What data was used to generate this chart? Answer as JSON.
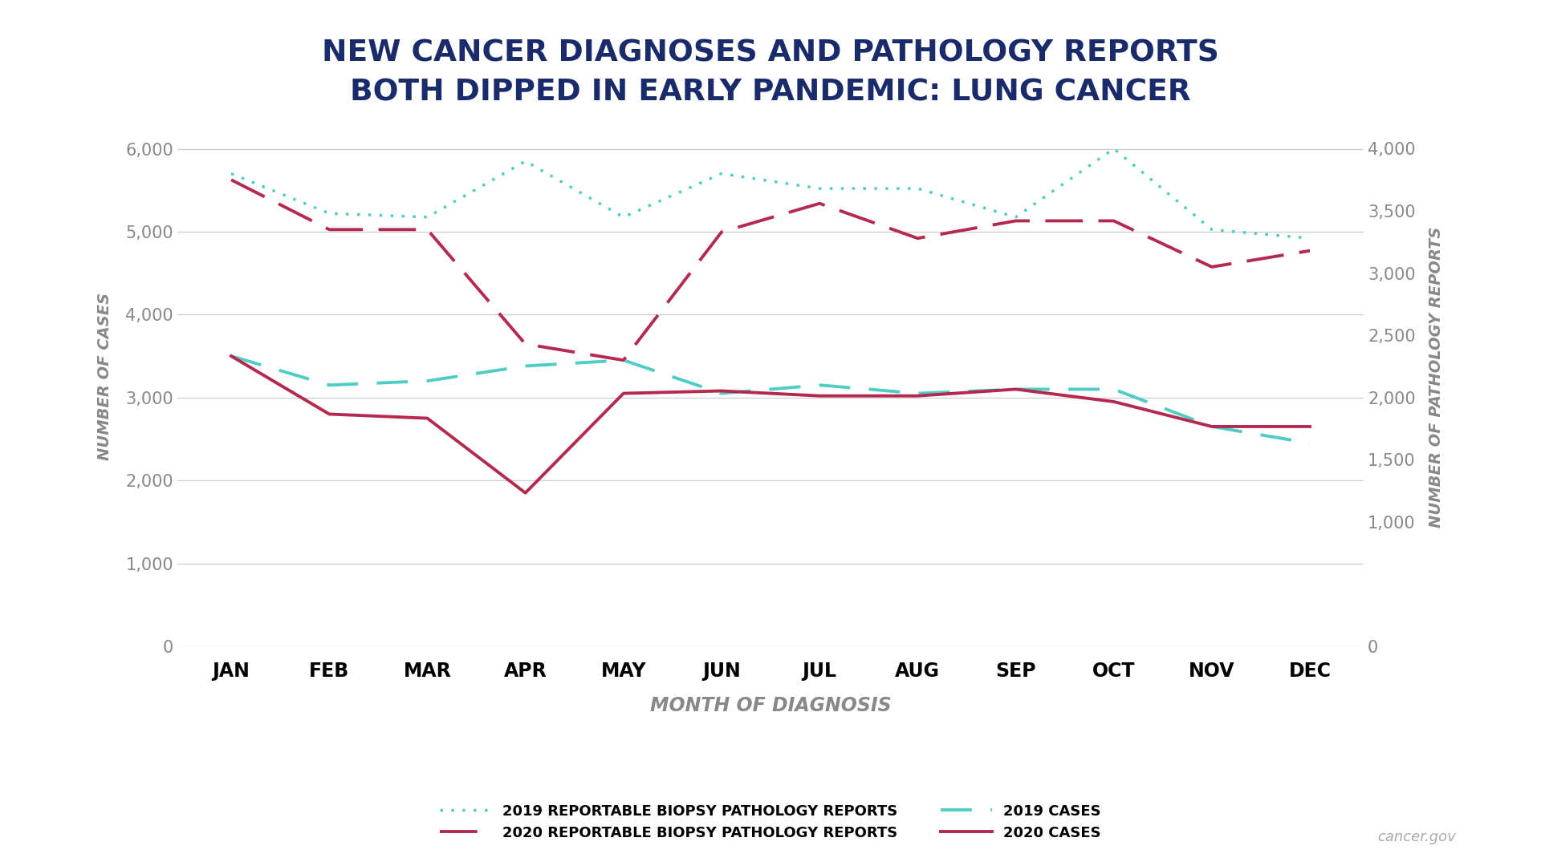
{
  "title_line1": "NEW CANCER DIAGNOSES AND PATHOLOGY REPORTS",
  "title_line2": "BOTH DIPPED IN EARLY PANDEMIC: LUNG CANCER",
  "title_color": "#1a2b6b",
  "months": [
    "JAN",
    "FEB",
    "MAR",
    "APR",
    "MAY",
    "JUN",
    "JUL",
    "AUG",
    "SEP",
    "OCT",
    "NOV",
    "DEC"
  ],
  "cases_2019": [
    3500,
    3150,
    3200,
    3380,
    3450,
    3050,
    3150,
    3050,
    3100,
    3100,
    2650,
    2450
  ],
  "cases_2020": [
    3500,
    2800,
    2750,
    1850,
    3050,
    3080,
    3020,
    3020,
    3100,
    2950,
    2650,
    2650
  ],
  "path_2019": [
    3800,
    3480,
    3450,
    3900,
    3450,
    3800,
    3680,
    3680,
    3450,
    4000,
    3350,
    3280
  ],
  "path_2020": [
    3750,
    3350,
    3350,
    2430,
    2300,
    3330,
    3560,
    3280,
    3420,
    3420,
    3050,
    3180
  ],
  "cases_color_2019": "#4ecdc4",
  "cases_color_2020": "#b5294e",
  "path_color_2019": "#4ecdc4",
  "path_color_2020": "#b5294e",
  "left_ylim": [
    0,
    6500
  ],
  "right_ylim": [
    0,
    4333
  ],
  "left_yticks": [
    0,
    1000,
    2000,
    3000,
    4000,
    5000,
    6000
  ],
  "right_yticks": [
    0,
    1000,
    1500,
    2000,
    2500,
    3000,
    3500,
    4000
  ],
  "xlabel": "MONTH OF DIAGNOSIS",
  "ylabel_left": "NUMBER OF CASES",
  "ylabel_right": "NUMBER OF PATHOLOGY REPORTS",
  "tick_label_color": "#888888",
  "axis_label_color": "#888888",
  "grid_color": "#cccccc",
  "background_color": "#ffffff",
  "watermark": "cancer.gov",
  "legend_path_2019": "2019 REPORTABLE BIOPSY PATHOLOGY REPORTS",
  "legend_path_2020": "2020 REPORTABLE BIOPSY PATHOLOGY REPORTS",
  "legend_cases_2019": "2019 CASES",
  "legend_cases_2020": "2020 CASES"
}
